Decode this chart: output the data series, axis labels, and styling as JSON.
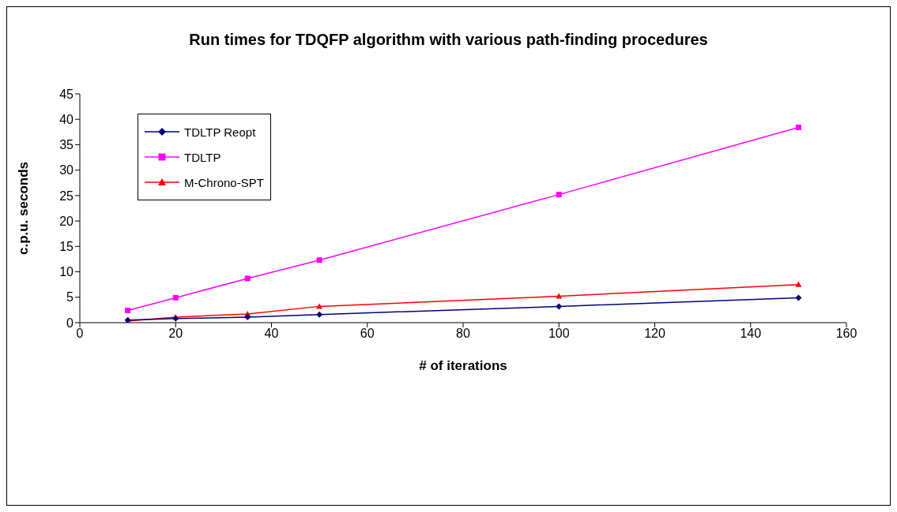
{
  "chart_data": {
    "type": "line",
    "title": "Run times for TDQFP algorithm with various path-finding procedures",
    "xlabel": "# of iterations",
    "ylabel": "c.p.u. seconds",
    "x": [
      10,
      20,
      35,
      50,
      100,
      150
    ],
    "series": [
      {
        "name": "TDLTP Reopt",
        "color": "#000080",
        "marker": "diamond",
        "values": [
          0.5,
          0.8,
          1.1,
          1.6,
          3.2,
          4.9
        ]
      },
      {
        "name": "TDLTP",
        "color": "#ff00ff",
        "marker": "square",
        "values": [
          2.4,
          4.9,
          8.7,
          12.3,
          25.2,
          38.4
        ]
      },
      {
        "name": "M-Chrono-SPT",
        "color": "#ff0000",
        "marker": "triangle",
        "values": [
          0.3,
          1.1,
          1.7,
          3.2,
          5.2,
          7.5
        ]
      }
    ],
    "xlim": [
      0,
      160
    ],
    "xticks": [
      0,
      20,
      40,
      60,
      80,
      100,
      120,
      140,
      160
    ],
    "ylim": [
      0,
      45
    ],
    "yticks": [
      0,
      5,
      10,
      15,
      20,
      25,
      30,
      35,
      40,
      45
    ],
    "grid": false,
    "legend": "top left",
    "line_style": "solid"
  }
}
